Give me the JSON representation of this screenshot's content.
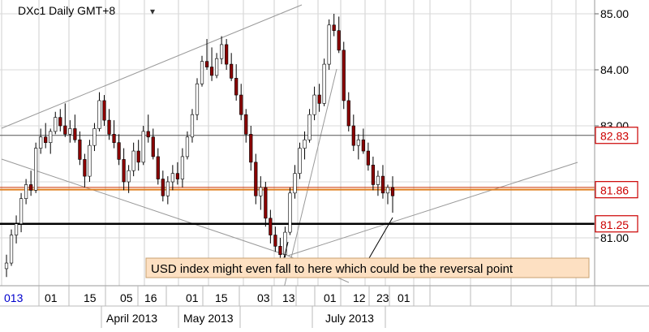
{
  "header": {
    "title": "DXc1 Daily GMT+8",
    "menu_marker": "▾"
  },
  "chart_data": {
    "type": "candlestick",
    "symbol": "DXc1",
    "timeframe": "Daily GMT+8",
    "ylim": [
      80.0,
      85.25
    ],
    "y_ticks": [
      "85.00",
      "84.00",
      "83.00",
      "81.00"
    ],
    "x_day_ticks": [
      "013",
      "01",
      "15",
      "05",
      "16",
      "01",
      "15",
      "03",
      "13",
      "01",
      "12",
      "23",
      "01"
    ],
    "x_month_labels": [
      "April 2013",
      "May 2013",
      "July 2013"
    ],
    "price_tags": [
      {
        "label": "82.83",
        "value": 82.83,
        "color": "#cc0000"
      },
      {
        "label": "81.86",
        "value": 81.86,
        "color": "#cc0000"
      },
      {
        "label": "81.25",
        "value": 81.25,
        "color": "#cc0000"
      }
    ],
    "horizontal_levels": [
      {
        "value": 82.83,
        "color": "#555555"
      },
      {
        "value": 81.9,
        "color": "#cc3300"
      },
      {
        "value": 81.86,
        "color": "#e08020"
      },
      {
        "value": 81.25,
        "color": "#000000"
      }
    ],
    "annotation": "USD index might even fall to here which could be the reversal point",
    "colors": {
      "up": "#ffffff",
      "down": "#8b0000",
      "wick": "#000000",
      "trend": "#999999"
    },
    "candles": [
      [
        80.45,
        80.7,
        80.3,
        80.55
      ],
      [
        80.55,
        81.15,
        80.5,
        81.05
      ],
      [
        81.05,
        81.4,
        80.9,
        81.25
      ],
      [
        81.25,
        81.8,
        81.1,
        81.7
      ],
      [
        81.7,
        82.05,
        81.6,
        81.95
      ],
      [
        81.95,
        82.2,
        81.75,
        81.85
      ],
      [
        81.85,
        82.7,
        81.8,
        82.6
      ],
      [
        82.6,
        82.95,
        82.5,
        82.8
      ],
      [
        82.8,
        83.05,
        82.6,
        82.7
      ],
      [
        82.7,
        82.95,
        82.5,
        82.9
      ],
      [
        82.9,
        83.25,
        82.85,
        83.15
      ],
      [
        83.15,
        83.3,
        82.9,
        83.0
      ],
      [
        83.0,
        83.4,
        82.8,
        82.85
      ],
      [
        82.85,
        83.1,
        82.7,
        82.95
      ],
      [
        82.95,
        83.2,
        82.7,
        82.75
      ],
      [
        82.75,
        82.9,
        82.3,
        82.4
      ],
      [
        82.4,
        82.5,
        81.9,
        82.1
      ],
      [
        82.1,
        82.75,
        82.0,
        82.65
      ],
      [
        82.65,
        83.05,
        82.55,
        82.95
      ],
      [
        82.95,
        83.6,
        82.9,
        83.45
      ],
      [
        83.45,
        83.55,
        83.0,
        83.1
      ],
      [
        83.1,
        83.3,
        82.75,
        82.85
      ],
      [
        82.85,
        83.1,
        82.6,
        82.7
      ],
      [
        82.7,
        82.85,
        82.3,
        82.4
      ],
      [
        82.4,
        82.6,
        81.85,
        82.0
      ],
      [
        82.0,
        82.3,
        81.8,
        82.2
      ],
      [
        82.2,
        82.7,
        82.1,
        82.55
      ],
      [
        82.55,
        82.75,
        82.2,
        82.35
      ],
      [
        82.35,
        83.0,
        82.3,
        82.9
      ],
      [
        82.9,
        83.2,
        82.7,
        82.8
      ],
      [
        82.8,
        82.95,
        82.4,
        82.45
      ],
      [
        82.45,
        82.6,
        81.95,
        82.05
      ],
      [
        82.05,
        82.2,
        81.65,
        81.75
      ],
      [
        81.75,
        82.1,
        81.6,
        82.0
      ],
      [
        82.0,
        82.3,
        81.85,
        82.15
      ],
      [
        82.15,
        82.35,
        81.95,
        82.05
      ],
      [
        82.05,
        82.6,
        81.9,
        82.45
      ],
      [
        82.45,
        82.9,
        82.4,
        82.8
      ],
      [
        82.8,
        83.3,
        82.7,
        83.2
      ],
      [
        83.2,
        83.85,
        83.1,
        83.75
      ],
      [
        83.75,
        84.25,
        83.7,
        84.15
      ],
      [
        84.15,
        84.55,
        84.0,
        84.05
      ],
      [
        84.05,
        84.4,
        83.8,
        83.9
      ],
      [
        83.9,
        84.3,
        83.85,
        84.2
      ],
      [
        84.2,
        84.6,
        84.1,
        84.45
      ],
      [
        84.45,
        84.55,
        84.0,
        84.1
      ],
      [
        84.1,
        84.3,
        83.8,
        83.85
      ],
      [
        83.85,
        84.1,
        83.45,
        83.55
      ],
      [
        83.55,
        83.75,
        83.1,
        83.2
      ],
      [
        83.2,
        83.3,
        82.7,
        82.85
      ],
      [
        82.85,
        83.0,
        82.2,
        82.35
      ],
      [
        82.35,
        82.5,
        81.6,
        81.75
      ],
      [
        81.75,
        82.1,
        81.5,
        81.9
      ],
      [
        81.9,
        82.0,
        81.2,
        81.35
      ],
      [
        81.35,
        81.5,
        80.9,
        81.05
      ],
      [
        81.05,
        81.2,
        80.75,
        80.85
      ],
      [
        80.85,
        81.0,
        80.6,
        80.7
      ],
      [
        80.7,
        81.2,
        80.65,
        81.1
      ],
      [
        81.1,
        81.9,
        81.05,
        81.8
      ],
      [
        81.8,
        82.3,
        81.7,
        82.15
      ],
      [
        82.15,
        82.7,
        82.05,
        82.6
      ],
      [
        82.6,
        82.9,
        82.4,
        82.75
      ],
      [
        82.75,
        83.3,
        82.7,
        83.2
      ],
      [
        83.2,
        83.7,
        83.1,
        83.55
      ],
      [
        83.55,
        83.75,
        83.25,
        83.4
      ],
      [
        83.4,
        84.2,
        83.35,
        84.1
      ],
      [
        84.1,
        84.9,
        84.0,
        84.8
      ],
      [
        84.8,
        85.0,
        84.6,
        84.7
      ],
      [
        84.7,
        84.95,
        84.3,
        84.35
      ],
      [
        84.35,
        84.5,
        83.3,
        83.45
      ],
      [
        83.45,
        83.6,
        82.9,
        83.0
      ],
      [
        83.0,
        83.2,
        82.55,
        82.65
      ],
      [
        82.65,
        82.85,
        82.4,
        82.75
      ],
      [
        82.75,
        82.95,
        82.5,
        82.55
      ],
      [
        82.55,
        82.7,
        82.2,
        82.3
      ],
      [
        82.3,
        82.45,
        81.85,
        81.95
      ],
      [
        81.95,
        82.2,
        81.75,
        82.1
      ],
      [
        82.1,
        82.3,
        81.7,
        81.8
      ],
      [
        81.8,
        81.95,
        81.6,
        81.9
      ],
      [
        81.9,
        82.1,
        81.45,
        81.75
      ]
    ]
  }
}
